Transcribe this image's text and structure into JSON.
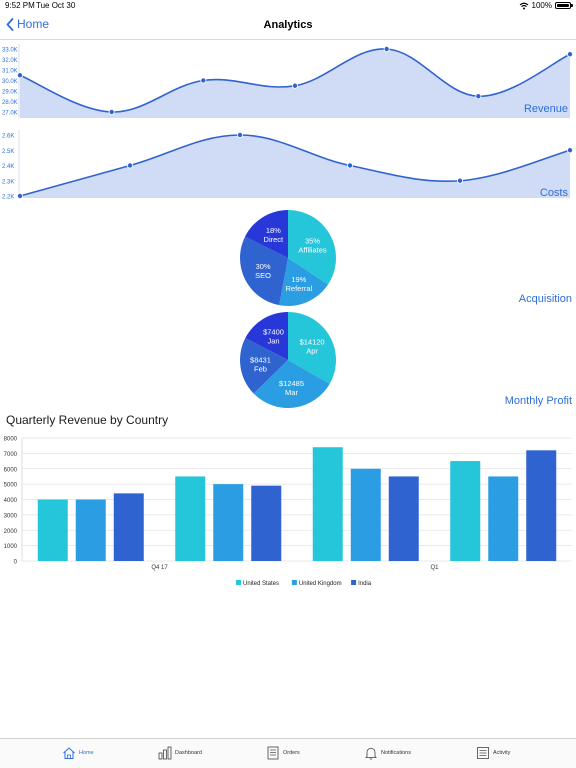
{
  "status": {
    "time": "9:52 PM",
    "date": "Tue Oct 30",
    "battery": "100%",
    "battery_level": 1.0
  },
  "nav": {
    "back_label": "Home",
    "title": "Analytics"
  },
  "colors": {
    "accent": "#2f6fd6",
    "area_fill": "#c5d3f3",
    "teal": "#26c6da",
    "sky": "#2b9de3",
    "royal": "#2f63cf"
  },
  "revenue": {
    "label": "Revenue",
    "y_ticks": [
      "33.0K",
      "32.0K",
      "31.0K",
      "30.0K",
      "29.0K",
      "28.0K",
      "27.0K"
    ],
    "values": [
      30.5,
      27.0,
      30.0,
      29.5,
      33.0,
      28.5,
      32.5
    ]
  },
  "costs": {
    "label": "Costs",
    "y_ticks": [
      "2.6K",
      "2.5K",
      "2.4K",
      "2.3K",
      "2.2K"
    ],
    "values": [
      2.2,
      2.4,
      2.6,
      2.4,
      2.3,
      2.5
    ]
  },
  "acquisition": {
    "label": "Acquisition",
    "slices": [
      {
        "pct": "35%",
        "name": "Affiliates",
        "value": 35
      },
      {
        "pct": "19%",
        "name": "Referral",
        "value": 19
      },
      {
        "pct": "30%",
        "name": "SEO",
        "value": 30
      },
      {
        "pct": "18%",
        "name": "Direct",
        "value": 18
      }
    ]
  },
  "monthly_profit": {
    "label": "Monthly Profit",
    "slices": [
      {
        "amount": "$14120",
        "name": "Apr",
        "value": 14120
      },
      {
        "amount": "$12485",
        "name": "Mar",
        "value": 12485
      },
      {
        "amount": "$8431",
        "name": "Feb",
        "value": 8431
      },
      {
        "amount": "$7400",
        "name": "Jan",
        "value": 7400
      }
    ]
  },
  "chart_data": {
    "type": "bar",
    "title": "Quarterly Revenue by Country",
    "ylim": [
      0,
      8000
    ],
    "y_ticks": [
      "8000",
      "7000",
      "6000",
      "5000",
      "4000",
      "3000",
      "2000",
      "1000",
      "0"
    ],
    "categories": [
      "Q4 17",
      "",
      "Q1",
      ""
    ],
    "series": [
      {
        "name": "United States",
        "values": [
          4000,
          5500,
          7400,
          6500
        ]
      },
      {
        "name": "United Kingdom",
        "values": [
          4000,
          5000,
          6000,
          5500
        ]
      },
      {
        "name": "India",
        "values": [
          4400,
          4900,
          5500,
          7200
        ]
      }
    ],
    "legend_position": "bottom",
    "grid": true
  },
  "tabs": [
    {
      "label": "Home",
      "icon": "home-icon"
    },
    {
      "label": "Dashboard",
      "icon": "dashboard-icon"
    },
    {
      "label": "Orders",
      "icon": "orders-icon"
    },
    {
      "label": "Notifications",
      "icon": "bell-icon"
    },
    {
      "label": "Activity",
      "icon": "activity-icon"
    }
  ]
}
